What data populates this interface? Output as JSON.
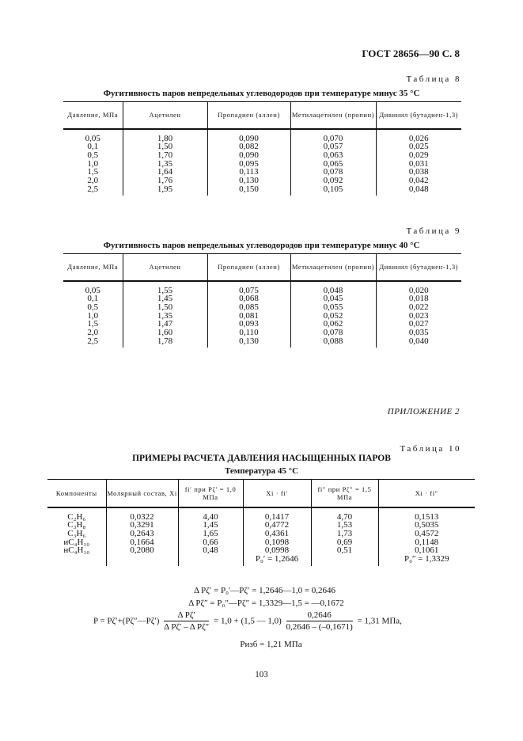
{
  "header": {
    "standard": "ГОСТ 28656—90 С. 8"
  },
  "table8": {
    "label": "Таблица 8",
    "title": "Фугитивность паров непредельных углеводородов при температуре минус 35 °С",
    "columns": [
      "Давление, МПа",
      "Ацетилен",
      "Пропадиен (аллен)",
      "Метилацетилен (пропин)",
      "Дивинил (бутадиен-1,3)"
    ],
    "rows": [
      [
        "0,05",
        "1,80",
        "0,090",
        "0,070",
        "0,026"
      ],
      [
        "0,1",
        "1,50",
        "0,082",
        "0,057",
        "0,025"
      ],
      [
        "0,5",
        "1,70",
        "0,090",
        "0,063",
        "0,029"
      ],
      [
        "1,0",
        "1,35",
        "0,095",
        "0,065",
        "0,031"
      ],
      [
        "1,5",
        "1,64",
        "0,113",
        "0,078",
        "0,038"
      ],
      [
        "2,0",
        "1,76",
        "0,130",
        "0,092",
        "0,042"
      ],
      [
        "2,5",
        "1,95",
        "0,150",
        "0,105",
        "0,048"
      ]
    ]
  },
  "table9": {
    "label": "Таблица 9",
    "title": "Фугитивность паров непредельных углеводородов при температуре минус 40 °С",
    "columns": [
      "Давление, МПа",
      "Ацетилен",
      "Пропадиен (аллен)",
      "Метилацетилен (пропин)",
      "Дивинил (бутадиен-1,3)"
    ],
    "rows": [
      [
        "0,05",
        "1,55",
        "0,075",
        "0,048",
        "0,020"
      ],
      [
        "0,1",
        "1,45",
        "0,068",
        "0,045",
        "0,018"
      ],
      [
        "0,5",
        "1,50",
        "0,085",
        "0,055",
        "0,022"
      ],
      [
        "1,0",
        "1,35",
        "0,081",
        "0,052",
        "0,023"
      ],
      [
        "1,5",
        "1,47",
        "0,093",
        "0,062",
        "0,027"
      ],
      [
        "2,0",
        "1,60",
        "0,110",
        "0,078",
        "0,035"
      ],
      [
        "2,5",
        "1,78",
        "0,130",
        "0,088",
        "0,040"
      ]
    ]
  },
  "appendix": "ПРИЛОЖЕНИЕ 2",
  "table10": {
    "label": "Таблица 10",
    "title": "ПРИМЕРЫ РАСЧЕТА ДАВЛЕНИЯ НАСЫЩЕННЫХ ПАРОВ",
    "subtitle": "Температура 45 °С",
    "columns": [
      "Компоненты",
      "Молярный состав, Xi",
      "fi′ при Pζ′ = 1,0 МПа",
      "Xi · fi′",
      "fi″ при Pζ″ = 1,5 МПа",
      "Xi · fi″"
    ],
    "rows": [
      [
        "C₂H₆",
        "0,0322",
        "4,40",
        "0,1417",
        "4,70",
        "0,1513"
      ],
      [
        "C₃H₈",
        "0,3291",
        "1,45",
        "0,4772",
        "1,53",
        "0,5035"
      ],
      [
        "C₃H₆",
        "0,2643",
        "1,65",
        "0,4361",
        "1,73",
        "0,4572"
      ],
      [
        "иC₄H₁₀",
        "0,1664",
        "0,66",
        "0,1098",
        "0,69",
        "0,1148"
      ],
      [
        "нC₄H₁₀",
        "0,2080",
        "0,48",
        "0,0998",
        "0,51",
        "0,1061"
      ],
      [
        "",
        "",
        "",
        "P₀′ = 1,2646",
        "",
        "P₀″ = 1,3329"
      ]
    ]
  },
  "formulas": {
    "line1": "Δ Pζ′ = P₀′—Pζ′ = 1,2646—1,0 = 0,2646",
    "line2": "Δ Pζ″ = P₀″—Pζ″ = 1,3329—1,5 = —0,1672",
    "line3_left": "P = Pζ′+(Pζ″—Pζ′)",
    "line3_frac1_num": "Δ Pζ′",
    "line3_frac1_den": "Δ Pζ′ – Δ Pζ″",
    "line3_mid": "= 1,0 + (1,5 — 1,0)",
    "line3_frac2_num": "0,2646",
    "line3_frac2_den": "0,2646 – (–0,1671)",
    "line3_right": "= 1,31 МПа,",
    "line4": "Pизб = 1,21 МПа"
  },
  "page_number": "103"
}
